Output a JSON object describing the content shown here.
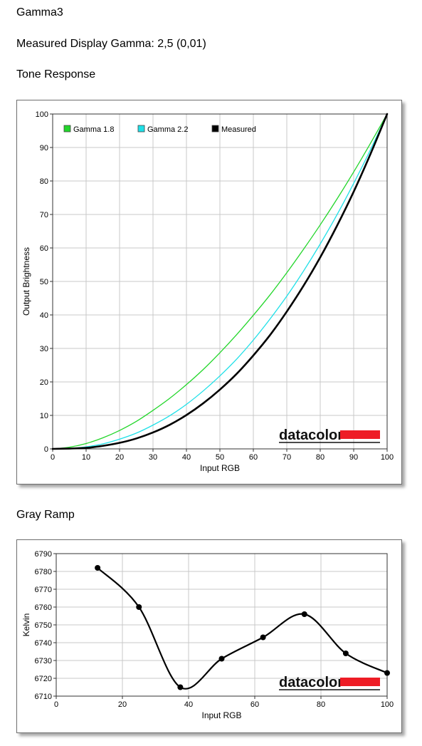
{
  "page": {
    "title": "Gamma3",
    "measured_gamma": "Measured Display Gamma: 2,5 (0,01)",
    "section_tone": "Tone Response",
    "section_gray": "Gray Ramp"
  },
  "watermark": "datacolor",
  "colors": {
    "gamma18": "#22d62a",
    "gamma22": "#1ee0e8",
    "measured": "#000000",
    "grid": "#c8c8c8",
    "watermark_bar": "#ee1c25"
  },
  "chart_data": [
    {
      "id": "tone",
      "type": "line",
      "title": "",
      "xlabel": "Input RGB",
      "ylabel": "Output Brightness",
      "xlim": [
        0,
        100
      ],
      "ylim": [
        0,
        100
      ],
      "xticks": [
        0,
        10,
        20,
        30,
        40,
        50,
        60,
        70,
        80,
        90,
        100
      ],
      "yticks": [
        0,
        10,
        20,
        30,
        40,
        50,
        60,
        70,
        80,
        90,
        100
      ],
      "grid": true,
      "legend_position": "top-left",
      "series": [
        {
          "name": "Gamma 1.8",
          "color": "#22d62a",
          "x": [
            0,
            5,
            10,
            15,
            20,
            25,
            30,
            35,
            40,
            45,
            50,
            55,
            60,
            65,
            70,
            75,
            80,
            85,
            90,
            95,
            100
          ],
          "y": [
            0,
            0.5,
            1.6,
            3.3,
            5.5,
            8.2,
            11.5,
            15.1,
            19.2,
            23.7,
            28.7,
            34.1,
            39.9,
            46.0,
            52.6,
            59.6,
            66.9,
            74.6,
            82.7,
            91.2,
            100
          ]
        },
        {
          "name": "Gamma 2.2",
          "color": "#1ee0e8",
          "x": [
            0,
            5,
            10,
            15,
            20,
            25,
            30,
            35,
            40,
            45,
            50,
            55,
            60,
            65,
            70,
            75,
            80,
            85,
            90,
            95,
            100
          ],
          "y": [
            0,
            0.1,
            0.6,
            1.5,
            2.9,
            4.7,
            7.1,
            9.9,
            13.3,
            17.3,
            21.8,
            26.8,
            32.5,
            38.8,
            45.6,
            53.1,
            61.2,
            69.9,
            79.3,
            89.3,
            100
          ]
        },
        {
          "name": "Measured",
          "color": "#000000",
          "x": [
            0,
            5,
            10,
            15,
            20,
            25,
            30,
            35,
            40,
            45,
            50,
            55,
            60,
            65,
            70,
            75,
            80,
            85,
            90,
            95,
            100
          ],
          "y": [
            0,
            0.1,
            0.3,
            0.9,
            1.8,
            3.1,
            4.9,
            7.2,
            10.1,
            13.6,
            17.7,
            22.4,
            27.9,
            34.0,
            41.0,
            48.7,
            57.2,
            66.6,
            76.8,
            88.0,
            100
          ]
        }
      ]
    },
    {
      "id": "gray",
      "type": "line",
      "title": "",
      "xlabel": "Input RGB",
      "ylabel": "Kelvin",
      "xlim": [
        0,
        100
      ],
      "ylim": [
        6710,
        6790
      ],
      "xticks": [
        0,
        20,
        40,
        60,
        80,
        100
      ],
      "yticks": [
        6710,
        6720,
        6730,
        6740,
        6750,
        6760,
        6770,
        6780,
        6790
      ],
      "grid": true,
      "series": [
        {
          "name": "",
          "color": "#000000",
          "x": [
            12.5,
            25,
            37.5,
            50,
            62.5,
            75,
            87.5,
            100
          ],
          "y": [
            6782,
            6760,
            6715,
            6731,
            6743,
            6756,
            6734,
            6723
          ]
        }
      ]
    }
  ]
}
